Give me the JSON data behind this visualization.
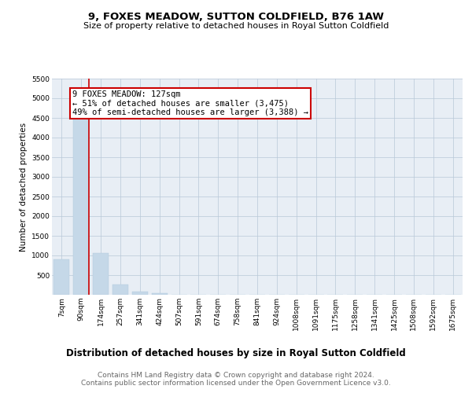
{
  "title": "9, FOXES MEADOW, SUTTON COLDFIELD, B76 1AW",
  "subtitle": "Size of property relative to detached houses in Royal Sutton Coldfield",
  "xlabel": "Distribution of detached houses by size in Royal Sutton Coldfield",
  "ylabel": "Number of detached properties",
  "categories": [
    "7sqm",
    "90sqm",
    "174sqm",
    "257sqm",
    "341sqm",
    "424sqm",
    "507sqm",
    "591sqm",
    "674sqm",
    "758sqm",
    "841sqm",
    "924sqm",
    "1008sqm",
    "1091sqm",
    "1175sqm",
    "1258sqm",
    "1341sqm",
    "1425sqm",
    "1508sqm",
    "1592sqm",
    "1675sqm"
  ],
  "values": [
    900,
    4550,
    1060,
    260,
    85,
    50,
    8,
    0,
    0,
    0,
    0,
    0,
    0,
    0,
    0,
    0,
    0,
    0,
    0,
    0,
    0
  ],
  "bar_color": "#c5d8e8",
  "bar_edge_color": "#afc8dc",
  "highlight_line_color": "#cc0000",
  "annotation_text": "9 FOXES MEADOW: 127sqm\n← 51% of detached houses are smaller (3,475)\n49% of semi-detached houses are larger (3,388) →",
  "annotation_box_color": "#ffffff",
  "annotation_box_edge_color": "#cc0000",
  "ylim": [
    0,
    5500
  ],
  "yticks": [
    0,
    500,
    1000,
    1500,
    2000,
    2500,
    3000,
    3500,
    4000,
    4500,
    5000,
    5500
  ],
  "footnote": "Contains HM Land Registry data © Crown copyright and database right 2024.\nContains public sector information licensed under the Open Government Licence v3.0.",
  "plot_bg_color": "#e8eef5",
  "title_fontsize": 9.5,
  "subtitle_fontsize": 8,
  "xlabel_fontsize": 8.5,
  "ylabel_fontsize": 7.5,
  "tick_fontsize": 6.5,
  "footnote_fontsize": 6.5,
  "annotation_fontsize": 7.5
}
